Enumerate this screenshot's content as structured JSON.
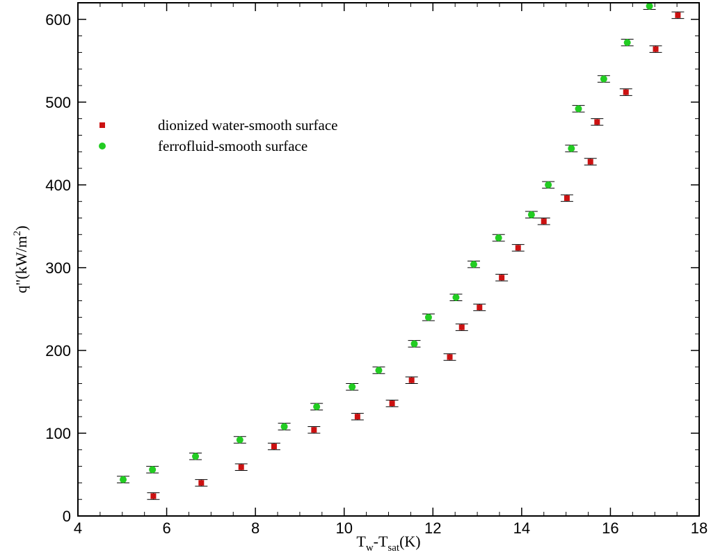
{
  "chart_data": {
    "type": "scatter",
    "xlabel": {
      "base": "T",
      "sub1": "w",
      "mid": "-T",
      "sub2": "sat",
      "tail": "(K)"
    },
    "ylabel": {
      "base": "q\"(kW/m",
      "sup": "2",
      "tail": ")"
    },
    "xlim": [
      4,
      18
    ],
    "ylim": [
      0,
      620
    ],
    "x_ticks": [
      4,
      6,
      8,
      10,
      12,
      14,
      16,
      18
    ],
    "y_ticks": [
      0,
      100,
      200,
      300,
      400,
      500,
      600
    ],
    "grid": false,
    "legend_position": "upper-left",
    "series": [
      {
        "name": "dionized water-smooth surface",
        "marker": "square",
        "color": "#cc1111",
        "error": 4,
        "x": [
          5.7,
          6.78,
          7.68,
          8.42,
          9.32,
          10.3,
          11.08,
          11.52,
          12.38,
          12.65,
          13.05,
          13.55,
          13.92,
          14.5,
          15.02,
          15.55,
          15.7,
          16.35,
          17.02,
          17.52
        ],
        "y": [
          24,
          40,
          59,
          84,
          104,
          120,
          136,
          164,
          192,
          228,
          252,
          288,
          324,
          356,
          384,
          428,
          476,
          512,
          564,
          605
        ]
      },
      {
        "name": "ferrofluid-smooth surface",
        "marker": "circle",
        "color": "#22cc22",
        "error": 4,
        "x": [
          5.02,
          5.68,
          6.65,
          7.65,
          8.65,
          9.38,
          10.18,
          10.78,
          11.58,
          11.9,
          12.52,
          12.92,
          13.48,
          14.22,
          14.6,
          15.12,
          15.28,
          15.85,
          16.38,
          16.88
        ],
        "y": [
          44,
          56,
          72,
          92,
          108,
          132,
          156,
          176,
          208,
          240,
          264,
          304,
          336,
          364,
          400,
          444,
          492,
          528,
          572,
          616
        ]
      }
    ]
  }
}
